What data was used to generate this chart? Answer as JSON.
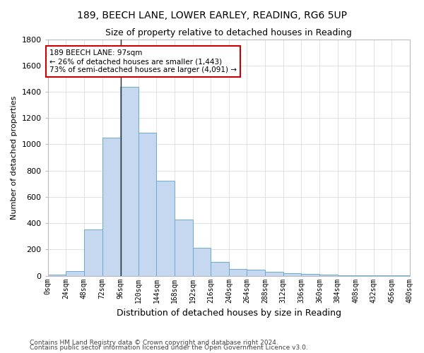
{
  "title1": "189, BEECH LANE, LOWER EARLEY, READING, RG6 5UP",
  "title2": "Size of property relative to detached houses in Reading",
  "xlabel": "Distribution of detached houses by size in Reading",
  "ylabel": "Number of detached properties",
  "bin_edges": [
    0,
    24,
    48,
    72,
    96,
    120,
    144,
    168,
    192,
    216,
    240,
    264,
    288,
    312,
    336,
    360,
    384,
    408,
    432,
    456,
    480
  ],
  "bar_heights": [
    10,
    35,
    350,
    1050,
    1440,
    1090,
    725,
    430,
    215,
    105,
    50,
    45,
    30,
    20,
    15,
    10,
    5,
    5,
    5,
    2
  ],
  "bar_color": "#c5d8f0",
  "bar_edgecolor": "#6aaad4",
  "property_size": 97,
  "property_line_color": "#333333",
  "annotation_line1": "189 BEECH LANE: 97sqm",
  "annotation_line2": "← 26% of detached houses are smaller (1,443)",
  "annotation_line3": "73% of semi-detached houses are larger (4,091) →",
  "annotation_box_color": "#ffffff",
  "annotation_box_edgecolor": "#cc0000",
  "ylim": [
    0,
    1800
  ],
  "yticks": [
    0,
    200,
    400,
    600,
    800,
    1000,
    1200,
    1400,
    1600,
    1800
  ],
  "footer1": "Contains HM Land Registry data © Crown copyright and database right 2024.",
  "footer2": "Contains public sector information licensed under the Open Government Licence v3.0.",
  "bg_color": "#ffffff",
  "plot_bg_color": "#ffffff",
  "grid_color": "#dddddd",
  "tick_label_fontsize": 7,
  "ylabel_fontsize": 8,
  "xlabel_fontsize": 9,
  "title1_fontsize": 10,
  "title2_fontsize": 9
}
